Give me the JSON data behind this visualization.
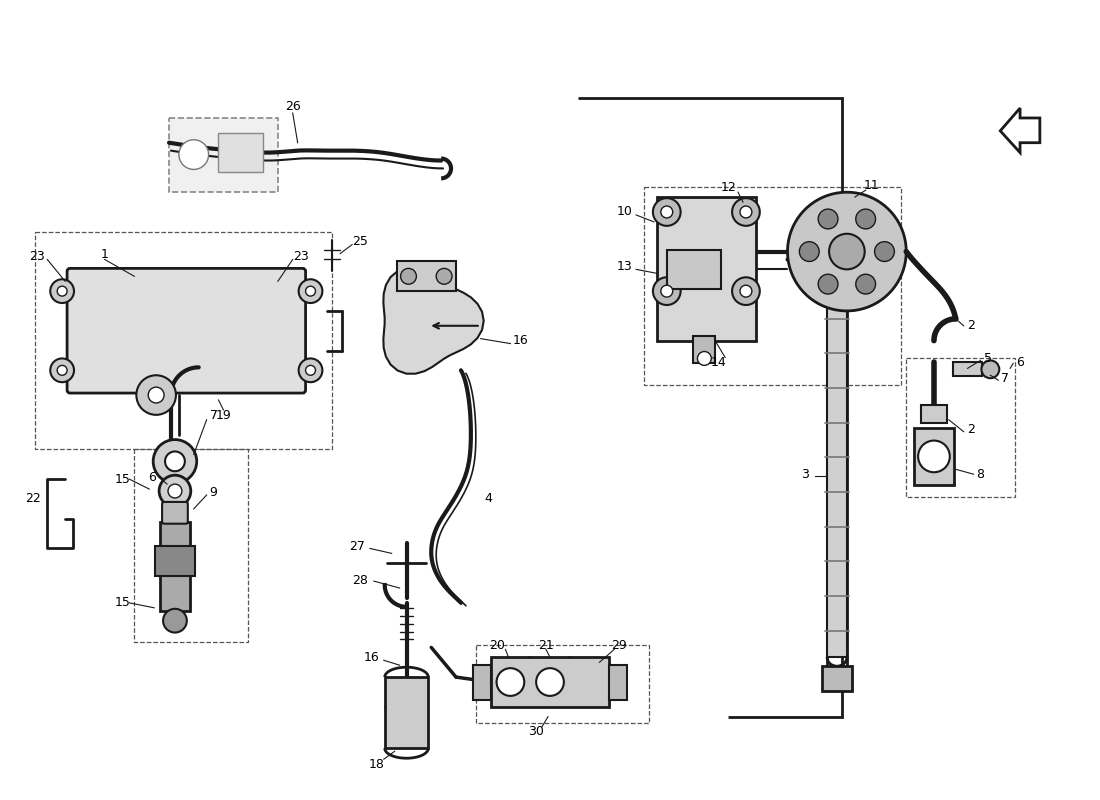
{
  "bg_color": "#ffffff",
  "lc": "#1a1a1a",
  "fig_width": 11.0,
  "fig_height": 8.0,
  "dpi": 100
}
